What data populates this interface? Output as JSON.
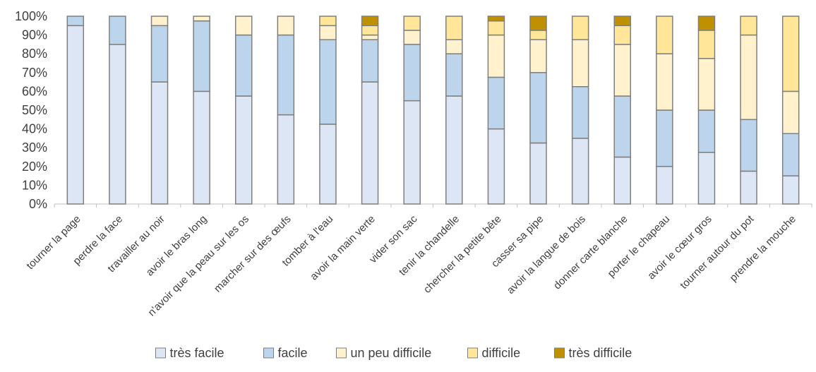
{
  "chart_data": {
    "type": "bar",
    "stacked": true,
    "percent": true,
    "categories": [
      "tourner la page",
      "perdre la face",
      "travailler au noir",
      "avoir le bras long",
      "n'avoir que la peau sur les os",
      "marcher sur des œufs",
      "tomber à l'eau",
      "avoir la main verte",
      "vider son sac",
      "tenir la chandelle",
      "chercher la petite bête",
      "casser sa pipe",
      "avoir la langue de bois",
      "donner carte blanche",
      "porter le chapeau",
      "avoir le cœur gros",
      "tourner autour du pot",
      "prendre la mouche"
    ],
    "series": [
      {
        "name": "très facile",
        "color": "#dce6f5",
        "values": [
          95,
          85,
          65,
          60,
          57.5,
          47.5,
          42.5,
          65,
          55,
          57.5,
          40,
          32.5,
          35,
          25,
          20,
          27.5,
          17.5,
          15
        ]
      },
      {
        "name": "facile",
        "color": "#bcd4ec",
        "values": [
          5,
          15,
          30,
          37.5,
          32.5,
          42.5,
          45,
          22.5,
          30,
          22.5,
          27.5,
          37.5,
          27.5,
          32.5,
          30,
          22.5,
          27.5,
          22.5
        ]
      },
      {
        "name": "un peu difficile",
        "color": "#fff2cc",
        "values": [
          0,
          0,
          5,
          2.5,
          10,
          10,
          7.5,
          2.5,
          7.5,
          7.5,
          22.5,
          17.5,
          25,
          27.5,
          30,
          27.5,
          45,
          22.5
        ]
      },
      {
        "name": "difficile",
        "color": "#ffe699",
        "values": [
          0,
          0,
          0,
          0,
          0,
          0,
          5,
          5,
          7.5,
          12.5,
          7.5,
          5,
          12.5,
          10,
          20,
          15,
          10,
          40
        ]
      },
      {
        "name": "très difficile",
        "color": "#bf9000",
        "values": [
          0,
          0,
          0,
          0,
          0,
          0,
          0,
          5,
          0,
          0,
          2.5,
          7.5,
          0,
          5,
          0,
          7.5,
          0,
          0
        ]
      }
    ],
    "y_ticks": [
      "0%",
      "10%",
      "20%",
      "30%",
      "40%",
      "50%",
      "60%",
      "70%",
      "80%",
      "90%",
      "100%"
    ],
    "ylim": [
      0,
      100
    ],
    "grid": false,
    "legend_position": "bottom"
  }
}
